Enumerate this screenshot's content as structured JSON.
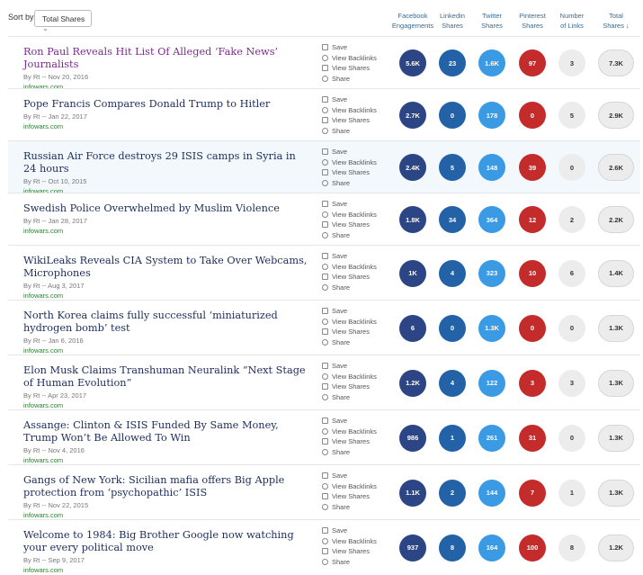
{
  "toolbar": {
    "sort_label": "Sort by",
    "sort_value": "Total Shares"
  },
  "columns": [
    [
      "Facebook",
      "Engagements"
    ],
    [
      "Linkedin",
      "Shares"
    ],
    [
      "Twitter",
      "Shares"
    ],
    [
      "Pinterest",
      "Shares"
    ],
    [
      "Number",
      "of Links"
    ],
    [
      "Total",
      "Shares ↓"
    ]
  ],
  "actions": [
    "Save",
    "View Backlinks",
    "View Shares",
    "Share"
  ],
  "rows": [
    {
      "title": "Ron Paul Reveals Hit List Of Alleged ‘Fake News’ Journalists",
      "byline": "By Rt -- Nov 20, 2016",
      "domain": "infowars.com",
      "metrics": [
        "5.6K",
        "23",
        "1.6K",
        "97",
        "3",
        "7.3K"
      ]
    },
    {
      "title": "Pope Francis Compares Donald Trump to Hitler",
      "byline": "By Rt -- Jan 22, 2017",
      "domain": "infowars.com",
      "metrics": [
        "2.7K",
        "0",
        "178",
        "0",
        "5",
        "2.9K"
      ]
    },
    {
      "title": "Russian Air Force destroys 29 ISIS camps in Syria in 24 hours",
      "byline": "By Rt -- Oct 10, 2015",
      "domain": "infowars.com",
      "metrics": [
        "2.4K",
        "5",
        "148",
        "39",
        "0",
        "2.6K"
      ]
    },
    {
      "title": "Swedish Police Overwhelmed by Muslim Violence",
      "byline": "By Rt -- Jan 28, 2017",
      "domain": "infowars.com",
      "metrics": [
        "1.8K",
        "34",
        "364",
        "12",
        "2",
        "2.2K"
      ]
    },
    {
      "title": "WikiLeaks Reveals CIA System to Take Over Webcams, Microphones",
      "byline": "By Rt -- Aug 3, 2017",
      "domain": "infowars.com",
      "metrics": [
        "1K",
        "4",
        "323",
        "10",
        "6",
        "1.4K"
      ]
    },
    {
      "title": "North Korea claims fully successful ‘miniaturized hydrogen bomb’ test",
      "byline": "By Rt -- Jan 6, 2016",
      "domain": "infowars.com",
      "metrics": [
        "6",
        "0",
        "1.3K",
        "0",
        "0",
        "1.3K"
      ]
    },
    {
      "title": "Elon Musk Claims Transhuman Neuralink “Next Stage of Human Evolution”",
      "byline": "By Rt -- Apr 23, 2017",
      "domain": "infowars.com",
      "metrics": [
        "1.2K",
        "4",
        "122",
        "3",
        "3",
        "1.3K"
      ]
    },
    {
      "title": "Assange: Clinton & ISIS Funded By Same Money, Trump Won’t Be Allowed To Win",
      "byline": "By Rt -- Nov 4, 2016",
      "domain": "infowars.com",
      "metrics": [
        "986",
        "1",
        "261",
        "31",
        "0",
        "1.3K"
      ]
    },
    {
      "title": "Gangs of New York: Sicilian mafia offers Big Apple protection from ‘psychopathic’ ISIS",
      "byline": "By Rt -- Nov 22, 2015",
      "domain": "infowars.com",
      "metrics": [
        "1.1K",
        "2",
        "144",
        "7",
        "1",
        "1.3K"
      ]
    },
    {
      "title": "Welcome to 1984: Big Brother Google now watching your every political move",
      "byline": "By Rt -- Sep 9, 2017",
      "domain": "infowars.com",
      "metrics": [
        "937",
        "8",
        "164",
        "100",
        "8",
        "1.2K"
      ]
    }
  ]
}
